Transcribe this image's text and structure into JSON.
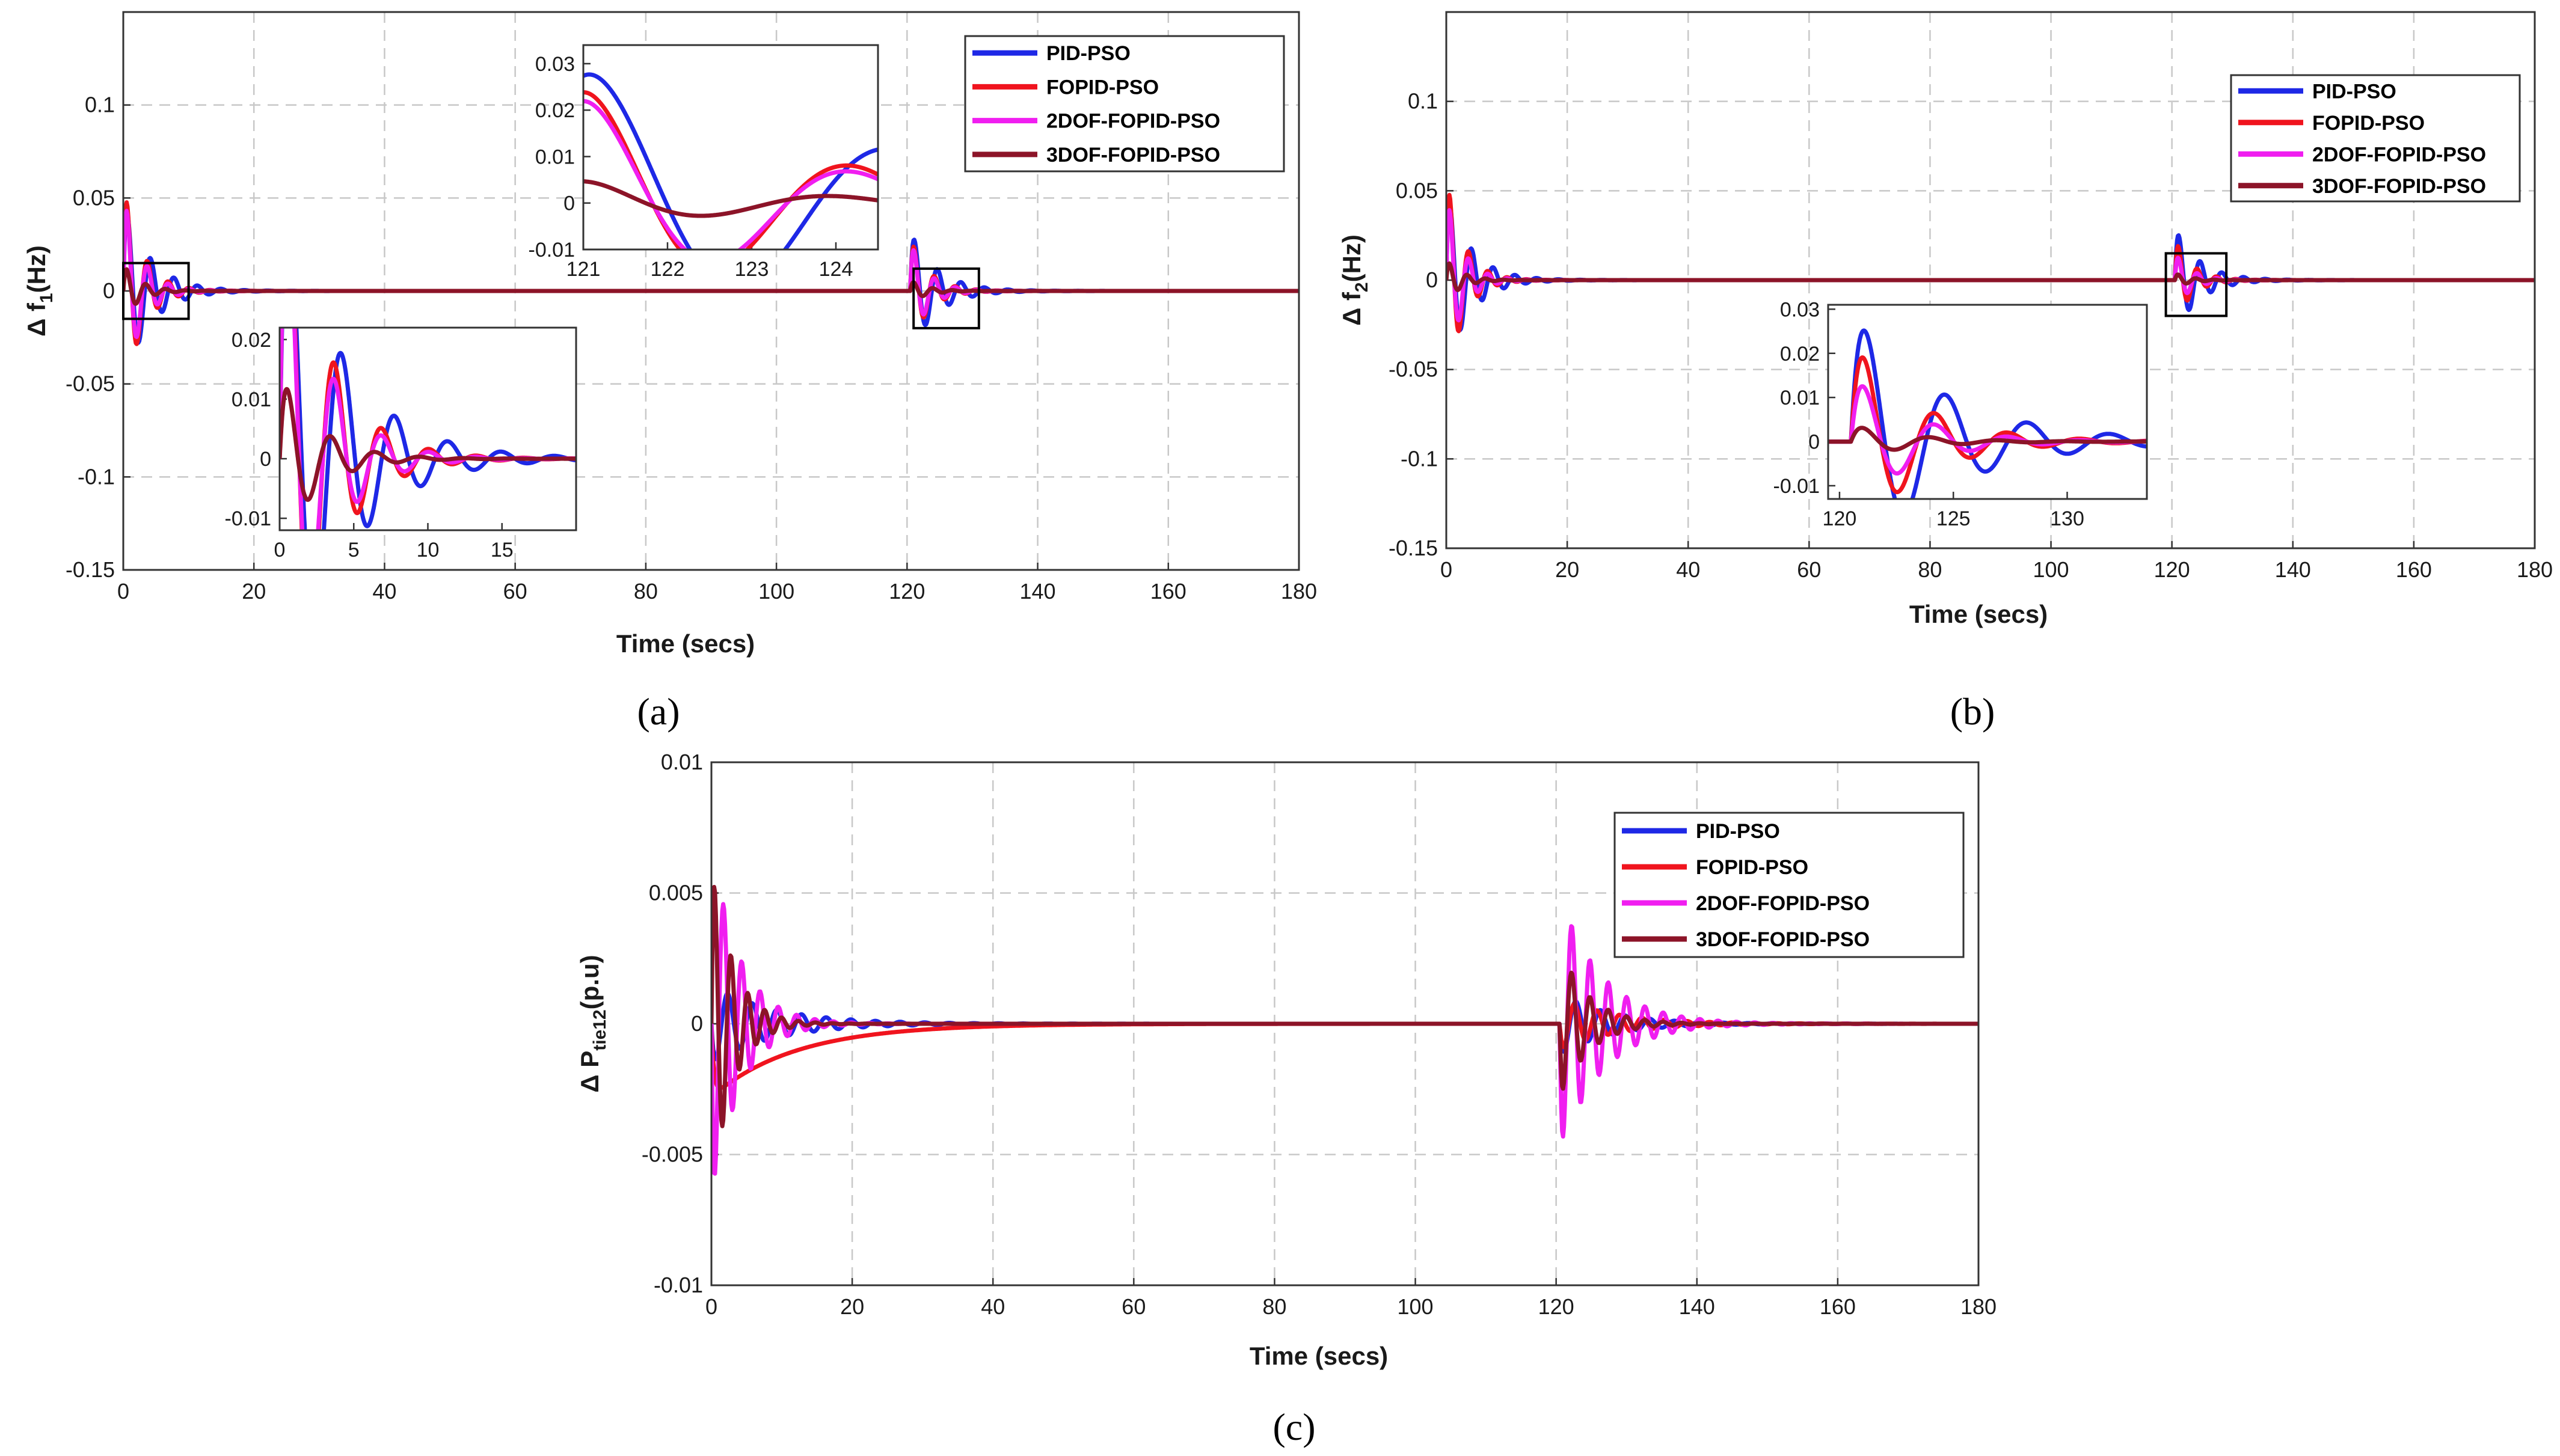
{
  "figure": {
    "captions": [
      "(a)",
      "(b)",
      "(c)"
    ]
  },
  "legend": [
    {
      "name": "PID-PSO",
      "color": "#1e28e6"
    },
    {
      "name": "FOPID-PSO",
      "color": "#f0141e"
    },
    {
      "name": "2DOF-FOPID-PSO",
      "color": "#f01ef0"
    },
    {
      "name": "3DOF-FOPID-PSO",
      "color": "#8c1428"
    }
  ],
  "chart_data": [
    {
      "id": "a",
      "type": "line",
      "xlabel": "Time (secs)",
      "ylabel": "Δ f",
      "ylabel_sub": "1",
      "ylabel_unit": "(Hz)",
      "xlim": [
        0,
        180
      ],
      "ylim": [
        -0.15,
        0.15
      ],
      "xticks": [
        0,
        20,
        40,
        60,
        80,
        100,
        120,
        140,
        160,
        180
      ],
      "yticks": [
        -0.15,
        -0.1,
        -0.05,
        0,
        0.05,
        0.1
      ],
      "ytick_labels": [
        "-0.15",
        "-0.1",
        "-0.05",
        "0",
        "0.05",
        "0.1"
      ],
      "grid": true,
      "legend_position": "top-right",
      "series": [
        {
          "name": "PID-PSO",
          "disturbances": [
            {
              "t0": 0,
              "amp": 0.05,
              "period": 3.6,
              "tau": 4.0
            },
            {
              "t0": 120.5,
              "amp": 0.033,
              "period": 3.6,
              "tau": 4.0
            }
          ]
        },
        {
          "name": "FOPID-PSO",
          "disturbances": [
            {
              "t0": 0,
              "amp": 0.06,
              "period": 3.2,
              "tau": 2.8
            },
            {
              "t0": 120.5,
              "amp": 0.03,
              "period": 3.2,
              "tau": 2.8
            }
          ]
        },
        {
          "name": "2DOF-FOPID-PSO",
          "disturbances": [
            {
              "t0": 0,
              "amp": 0.055,
              "period": 3.2,
              "tau": 2.6
            },
            {
              "t0": 120.5,
              "amp": 0.028,
              "period": 3.2,
              "tau": 2.6
            }
          ]
        },
        {
          "name": "3DOF-FOPID-PSO",
          "disturbances": [
            {
              "t0": 0,
              "amp": 0.015,
              "period": 3.0,
              "tau": 2.5
            },
            {
              "t0": 120.5,
              "amp": 0.006,
              "period": 3.0,
              "tau": 2.5
            }
          ]
        }
      ],
      "insets": [
        {
          "xlim": [
            0,
            20
          ],
          "ylim": [
            -0.012,
            0.022
          ],
          "xticks": [
            0,
            5,
            10,
            15
          ],
          "yticks": [
            -0.01,
            0,
            0.01,
            0.02
          ],
          "ytick_labels": [
            "-0.01",
            "0",
            "0.01",
            "0.02"
          ],
          "location": "lower-left"
        },
        {
          "xlim": [
            121,
            124.5
          ],
          "ylim": [
            -0.01,
            0.034
          ],
          "xticks": [
            121,
            122,
            123,
            124
          ],
          "yticks": [
            -0.01,
            0,
            0.01,
            0.02,
            0.03
          ],
          "ytick_labels": [
            "-0.01",
            "0",
            "0.01",
            "0.02",
            "0.03"
          ],
          "location": "top-center"
        }
      ],
      "zoom_boxes": [
        {
          "x": [
            0,
            10
          ],
          "y": [
            -0.015,
            0.015
          ]
        },
        {
          "x": [
            121,
            131
          ],
          "y": [
            -0.02,
            0.012
          ]
        }
      ]
    },
    {
      "id": "b",
      "type": "line",
      "xlabel": "Time (secs)",
      "ylabel": "Δ f",
      "ylabel_sub": "2",
      "ylabel_unit": "(Hz)",
      "xlim": [
        0,
        180
      ],
      "ylim": [
        -0.15,
        0.15
      ],
      "xticks": [
        0,
        20,
        40,
        60,
        80,
        100,
        120,
        140,
        160,
        180
      ],
      "yticks": [
        -0.15,
        -0.1,
        -0.05,
        0,
        0.05,
        0.1
      ],
      "ytick_labels": [
        "-0.15",
        "-0.1",
        "-0.05",
        "0",
        "0.05",
        "0.1"
      ],
      "grid": true,
      "legend_position": "top-right",
      "series": [
        {
          "name": "PID-PSO",
          "disturbances": [
            {
              "t0": 0,
              "amp": 0.05,
              "period": 3.6,
              "tau": 4.0
            },
            {
              "t0": 120.5,
              "amp": 0.03,
              "period": 3.6,
              "tau": 4.0
            }
          ]
        },
        {
          "name": "FOPID-PSO",
          "disturbances": [
            {
              "t0": 0,
              "amp": 0.06,
              "period": 3.2,
              "tau": 2.8
            },
            {
              "t0": 120.5,
              "amp": 0.024,
              "period": 3.2,
              "tau": 2.8
            }
          ]
        },
        {
          "name": "2DOF-FOPID-PSO",
          "disturbances": [
            {
              "t0": 0,
              "amp": 0.05,
              "period": 3.2,
              "tau": 2.6
            },
            {
              "t0": 120.5,
              "amp": 0.016,
              "period": 3.2,
              "tau": 2.6
            }
          ]
        },
        {
          "name": "3DOF-FOPID-PSO",
          "disturbances": [
            {
              "t0": 0,
              "amp": 0.012,
              "period": 3.0,
              "tau": 2.5
            },
            {
              "t0": 120.5,
              "amp": 0.004,
              "period": 3.0,
              "tau": 2.5
            }
          ]
        }
      ],
      "insets": [
        {
          "xlim": [
            119.5,
            133.5
          ],
          "ylim": [
            -0.013,
            0.031
          ],
          "xticks": [
            120,
            125,
            130
          ],
          "yticks": [
            -0.01,
            0,
            0.01,
            0.02,
            0.03
          ],
          "ytick_labels": [
            "-0.01",
            "0",
            "0.01",
            "0.02",
            "0.03"
          ],
          "location": "center"
        }
      ],
      "zoom_boxes": [
        {
          "x": [
            119,
            129
          ],
          "y": [
            -0.02,
            0.015
          ]
        }
      ]
    },
    {
      "id": "c",
      "type": "line",
      "xlabel": "Time (secs)",
      "ylabel": "Δ P",
      "ylabel_sub": "tie12",
      "ylabel_unit": "(p.u)",
      "xlim": [
        0,
        180
      ],
      "ylim": [
        -0.01,
        0.01
      ],
      "xticks": [
        0,
        20,
        40,
        60,
        80,
        100,
        120,
        140,
        160,
        180
      ],
      "yticks": [
        -0.01,
        -0.005,
        0,
        0.005,
        0.01
      ],
      "ytick_labels": [
        "-0.01",
        "-0.005",
        "0",
        "0.005",
        "0.01"
      ],
      "grid": true,
      "legend_position": "top-right",
      "series": [
        {
          "name": "PID-PSO",
          "disturbances": [
            {
              "t0": 0,
              "amp": -0.0015,
              "period": 3.5,
              "tau": 9.0
            },
            {
              "t0": 120.5,
              "amp": -0.0012,
              "period": 3.5,
              "tau": 7.0
            }
          ]
        },
        {
          "name": "FOPID-PSO",
          "disturbances": [
            {
              "t0": 0,
              "amp": -0.0028,
              "period": 0,
              "tau": 12.0
            },
            {
              "t0": 120.5,
              "amp": -0.001,
              "period": 3.2,
              "tau": 8.0
            }
          ]
        },
        {
          "name": "2DOF-FOPID-PSO",
          "disturbances": [
            {
              "t0": 0,
              "amp": -0.007,
              "period": 2.6,
              "tau": 4.0
            },
            {
              "t0": 120.5,
              "amp": -0.005,
              "period": 2.6,
              "tau": 6.0
            }
          ]
        },
        {
          "name": "3DOF-FOPID-PSO",
          "disturbances": [
            {
              "t0": 0,
              "amp": 0.0066,
              "period": 2.4,
              "tau": 3.0
            },
            {
              "t0": 120.5,
              "amp": -0.003,
              "period": 2.6,
              "tau": 4.0
            }
          ]
        }
      ]
    }
  ]
}
